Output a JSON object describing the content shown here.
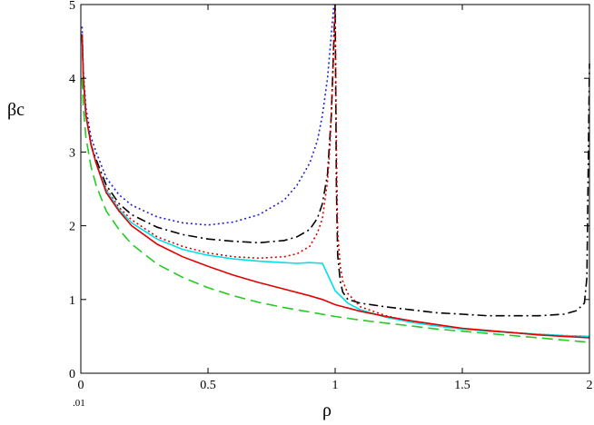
{
  "chart_data": {
    "type": "line",
    "title": "",
    "xlabel": "ρ",
    "ylabel": "βc",
    "xlim": [
      0,
      2
    ],
    "ylim": [
      0,
      5
    ],
    "x_ticks": [
      "0",
      "0.5",
      "1",
      "1.5",
      "2"
    ],
    "y_ticks": [
      "0",
      "1",
      "2",
      "3",
      "4",
      "5"
    ],
    "x_range_start_label": ".01",
    "x_range_end_label": "",
    "grid": false,
    "series": [
      {
        "color": "#2020d0",
        "style": "dotted",
        "x": [
          0.005,
          0.01,
          0.02,
          0.04,
          0.06,
          0.1,
          0.15,
          0.2,
          0.3,
          0.4,
          0.5,
          0.6,
          0.7,
          0.8,
          0.85,
          0.9,
          0.93,
          0.95,
          0.97,
          0.98,
          0.99,
          0.995
        ],
        "y": [
          4.7,
          4.1,
          3.6,
          3.2,
          3.0,
          2.65,
          2.42,
          2.28,
          2.12,
          2.04,
          2.01,
          2.05,
          2.15,
          2.35,
          2.55,
          2.85,
          3.15,
          3.5,
          4.0,
          4.4,
          4.8,
          5.0
        ]
      },
      {
        "color": "#000000",
        "style": "dashdot",
        "x": [
          0.005,
          0.01,
          0.02,
          0.04,
          0.06,
          0.1,
          0.15,
          0.2,
          0.3,
          0.4,
          0.5,
          0.6,
          0.7,
          0.8,
          0.85,
          0.9,
          0.93,
          0.95,
          0.97,
          0.985,
          0.995,
          1.0,
          1.005,
          1.01,
          1.02,
          1.03,
          1.05,
          1.1,
          1.2,
          1.3,
          1.4,
          1.5,
          1.6,
          1.7,
          1.8,
          1.9,
          1.95,
          1.98,
          1.99,
          2.0
        ],
        "y": [
          4.6,
          4.0,
          3.5,
          3.1,
          2.9,
          2.55,
          2.3,
          2.15,
          1.98,
          1.88,
          1.82,
          1.79,
          1.77,
          1.8,
          1.85,
          1.95,
          2.1,
          2.3,
          2.7,
          3.5,
          4.5,
          5.0,
          2.5,
          1.6,
          1.25,
          1.1,
          1.0,
          0.95,
          0.9,
          0.86,
          0.82,
          0.8,
          0.78,
          0.78,
          0.78,
          0.8,
          0.85,
          0.95,
          1.3,
          4.2
        ]
      },
      {
        "color": "#dd0000",
        "style": "dotted",
        "x": [
          0.005,
          0.01,
          0.02,
          0.04,
          0.06,
          0.1,
          0.15,
          0.2,
          0.3,
          0.4,
          0.5,
          0.6,
          0.7,
          0.8,
          0.85,
          0.9,
          0.93,
          0.95,
          0.97,
          0.98,
          0.99,
          0.995,
          1.0,
          1.005,
          1.01,
          1.02,
          1.03,
          1.05,
          1.1,
          1.2,
          1.3,
          1.4,
          1.5,
          1.6,
          1.7,
          1.8,
          1.9,
          2.0
        ],
        "y": [
          4.6,
          4.0,
          3.5,
          3.1,
          2.85,
          2.5,
          2.25,
          2.08,
          1.85,
          1.72,
          1.63,
          1.58,
          1.56,
          1.58,
          1.62,
          1.72,
          1.9,
          2.1,
          2.6,
          3.1,
          4.0,
          4.6,
          5.0,
          3.0,
          1.9,
          1.45,
          1.25,
          1.08,
          0.9,
          0.78,
          0.7,
          0.64,
          0.6,
          0.57,
          0.55,
          0.53,
          0.51,
          0.5
        ]
      },
      {
        "color": "#00e0e8",
        "style": "solid",
        "x": [
          0.005,
          0.01,
          0.02,
          0.04,
          0.06,
          0.1,
          0.15,
          0.2,
          0.3,
          0.4,
          0.5,
          0.6,
          0.7,
          0.8,
          0.85,
          0.9,
          0.95,
          1.0,
          1.05,
          1.1,
          1.2,
          1.3,
          1.4,
          1.5,
          1.6,
          1.7,
          1.8,
          1.9,
          2.0
        ],
        "y": [
          4.6,
          4.0,
          3.5,
          3.1,
          2.85,
          2.48,
          2.22,
          2.04,
          1.82,
          1.68,
          1.6,
          1.55,
          1.52,
          1.5,
          1.49,
          1.5,
          1.49,
          1.12,
          0.95,
          0.86,
          0.76,
          0.69,
          0.64,
          0.6,
          0.57,
          0.55,
          0.53,
          0.51,
          0.5
        ]
      },
      {
        "color": "#e00000",
        "style": "solid",
        "x": [
          0.005,
          0.01,
          0.02,
          0.04,
          0.06,
          0.1,
          0.15,
          0.2,
          0.3,
          0.4,
          0.5,
          0.6,
          0.7,
          0.8,
          0.9,
          0.95,
          1.0,
          1.1,
          1.2,
          1.3,
          1.4,
          1.5,
          1.6,
          1.7,
          1.8,
          1.9,
          2.0
        ],
        "y": [
          4.6,
          4.0,
          3.5,
          3.1,
          2.85,
          2.45,
          2.2,
          2.0,
          1.75,
          1.58,
          1.45,
          1.33,
          1.23,
          1.14,
          1.05,
          1.0,
          0.93,
          0.84,
          0.77,
          0.71,
          0.66,
          0.61,
          0.58,
          0.55,
          0.52,
          0.5,
          0.48
        ]
      },
      {
        "color": "#22cc22",
        "style": "dashed",
        "x": [
          0.005,
          0.01,
          0.02,
          0.04,
          0.06,
          0.1,
          0.15,
          0.2,
          0.3,
          0.4,
          0.5,
          0.6,
          0.7,
          0.8,
          0.9,
          1.0,
          1.1,
          1.2,
          1.3,
          1.4,
          1.5,
          1.6,
          1.7,
          1.8,
          1.9,
          2.0
        ],
        "y": [
          4.0,
          3.6,
          3.2,
          2.8,
          2.55,
          2.2,
          1.95,
          1.75,
          1.48,
          1.3,
          1.16,
          1.05,
          0.96,
          0.89,
          0.83,
          0.77,
          0.72,
          0.68,
          0.64,
          0.6,
          0.57,
          0.54,
          0.51,
          0.48,
          0.45,
          0.42
        ]
      }
    ]
  }
}
